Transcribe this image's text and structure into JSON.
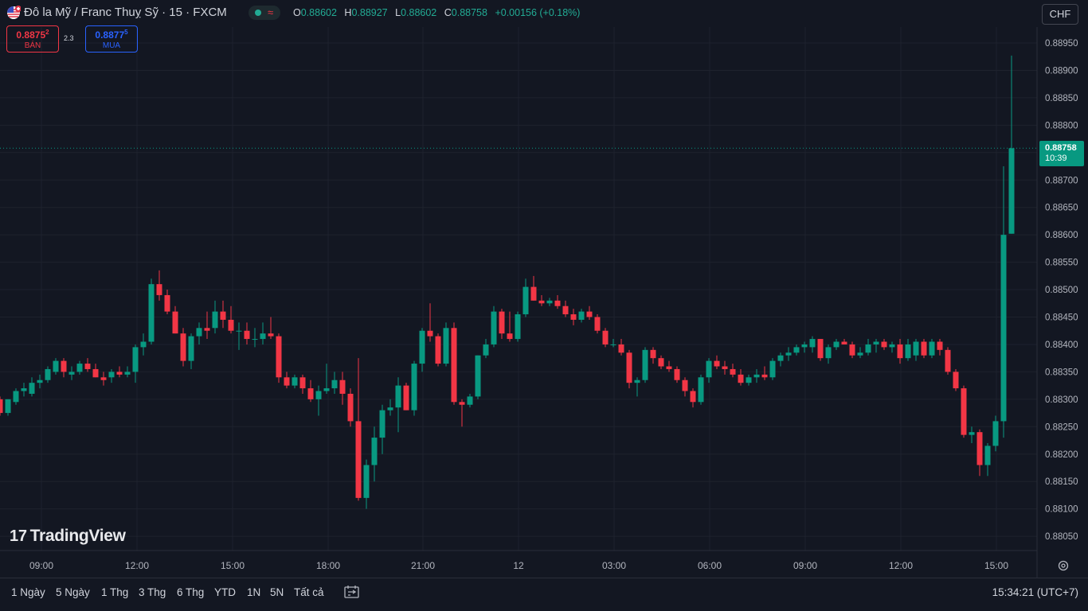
{
  "header": {
    "title": "Đô la Mỹ / Franc Thuỵ Sỹ · 15 · FXCM",
    "ohlc": {
      "o_label": "O",
      "o": "0.88602",
      "h_label": "H",
      "h": "0.88927",
      "l_label": "L",
      "l": "0.88602",
      "c_label": "C",
      "c": "0.88758",
      "change": "+0.00156 (+0.18%)"
    },
    "currency": "CHF"
  },
  "trade": {
    "sell_price_main": "0.8875",
    "sell_price_sup": "2",
    "sell_label": "BÁN",
    "spread": "2.3",
    "buy_price_main": "0.8877",
    "buy_price_sup": "5",
    "buy_label": "MUA"
  },
  "price_tag": {
    "price": "0.88758",
    "countdown": "10:39"
  },
  "logo": {
    "text": "TradingView"
  },
  "range_buttons": [
    "1 Ngày",
    "5 Ngày",
    "1 Thg",
    "3 Thg",
    "6 Thg",
    "YTD",
    "1N",
    "5N",
    "Tất cả"
  ],
  "clock": "15:34:21 (UTC+7)",
  "colors": {
    "up": "#089981",
    "down": "#f23645",
    "background": "#131722",
    "grid": "#1e222d"
  },
  "icons": [
    "us-flag-icon",
    "status-dot-icon",
    "wave-icon",
    "compare-range-icon",
    "gear-icon"
  ],
  "chart_data": {
    "type": "candlestick",
    "interval": "15",
    "ylim": [
      0.8803,
      0.8898
    ],
    "y_ticks": [
      "0.88950",
      "0.88900",
      "0.88850",
      "0.88800",
      "0.88750",
      "0.88700",
      "0.88650",
      "0.88600",
      "0.88550",
      "0.88500",
      "0.88450",
      "0.88400",
      "0.88350",
      "0.88300",
      "0.88250",
      "0.88200",
      "0.88150",
      "0.88100",
      "0.88050"
    ],
    "x_ticks": [
      "09:00",
      "12:00",
      "15:00",
      "18:00",
      "21:00",
      "12",
      "03:00",
      "06:00",
      "09:00",
      "12:00",
      "15:00"
    ],
    "last_price": 0.88758,
    "candles": [
      {
        "o": 0.8826,
        "h": 0.8829,
        "l": 0.8825,
        "c": 0.88275
      },
      {
        "o": 0.8828,
        "h": 0.8832,
        "l": 0.8827,
        "c": 0.883
      },
      {
        "o": 0.883,
        "h": 0.8831,
        "l": 0.8828,
        "c": 0.8829
      },
      {
        "o": 0.88295,
        "h": 0.8832,
        "l": 0.8829,
        "c": 0.88315
      },
      {
        "o": 0.8831,
        "h": 0.8833,
        "l": 0.88295,
        "c": 0.88305
      },
      {
        "o": 0.88305,
        "h": 0.88315,
        "l": 0.8829,
        "c": 0.8829
      },
      {
        "o": 0.8829,
        "h": 0.883,
        "l": 0.8826,
        "c": 0.8827
      },
      {
        "o": 0.8827,
        "h": 0.8831,
        "l": 0.88265,
        "c": 0.883
      },
      {
        "o": 0.883,
        "h": 0.88305,
        "l": 0.8827,
        "c": 0.88275
      },
      {
        "o": 0.88275,
        "h": 0.883,
        "l": 0.8827,
        "c": 0.883
      },
      {
        "o": 0.88295,
        "h": 0.8832,
        "l": 0.8829,
        "c": 0.88315
      },
      {
        "o": 0.88315,
        "h": 0.8833,
        "l": 0.88305,
        "c": 0.8832
      },
      {
        "o": 0.8831,
        "h": 0.8834,
        "l": 0.88305,
        "c": 0.8833
      },
      {
        "o": 0.8833,
        "h": 0.88345,
        "l": 0.8832,
        "c": 0.88335
      },
      {
        "o": 0.88335,
        "h": 0.8836,
        "l": 0.8833,
        "c": 0.88355
      },
      {
        "o": 0.8835,
        "h": 0.88375,
        "l": 0.88345,
        "c": 0.8837
      },
      {
        "o": 0.8837,
        "h": 0.88375,
        "l": 0.8834,
        "c": 0.8835
      },
      {
        "o": 0.88345,
        "h": 0.8836,
        "l": 0.88335,
        "c": 0.8835
      },
      {
        "o": 0.8835,
        "h": 0.8837,
        "l": 0.88345,
        "c": 0.88365
      },
      {
        "o": 0.88365,
        "h": 0.88375,
        "l": 0.8835,
        "c": 0.88355
      },
      {
        "o": 0.88355,
        "h": 0.88365,
        "l": 0.8834,
        "c": 0.8834
      },
      {
        "o": 0.8834,
        "h": 0.8835,
        "l": 0.88325,
        "c": 0.88335
      },
      {
        "o": 0.8834,
        "h": 0.88355,
        "l": 0.8833,
        "c": 0.8835
      },
      {
        "o": 0.8835,
        "h": 0.8836,
        "l": 0.8834,
        "c": 0.88345
      },
      {
        "o": 0.88345,
        "h": 0.8836,
        "l": 0.8834,
        "c": 0.8835
      },
      {
        "o": 0.8835,
        "h": 0.884,
        "l": 0.8833,
        "c": 0.88395
      },
      {
        "o": 0.88395,
        "h": 0.8842,
        "l": 0.8838,
        "c": 0.88405
      },
      {
        "o": 0.88405,
        "h": 0.8852,
        "l": 0.884,
        "c": 0.8851
      },
      {
        "o": 0.8851,
        "h": 0.88535,
        "l": 0.8848,
        "c": 0.8849
      },
      {
        "o": 0.8849,
        "h": 0.885,
        "l": 0.88455,
        "c": 0.8846
      },
      {
        "o": 0.8846,
        "h": 0.8847,
        "l": 0.8842,
        "c": 0.8842
      },
      {
        "o": 0.8842,
        "h": 0.8843,
        "l": 0.8836,
        "c": 0.8837
      },
      {
        "o": 0.8837,
        "h": 0.8842,
        "l": 0.88355,
        "c": 0.88415
      },
      {
        "o": 0.88415,
        "h": 0.8844,
        "l": 0.884,
        "c": 0.8843
      },
      {
        "o": 0.8843,
        "h": 0.8846,
        "l": 0.8841,
        "c": 0.88425
      },
      {
        "o": 0.8843,
        "h": 0.8848,
        "l": 0.8842,
        "c": 0.8846
      },
      {
        "o": 0.8846,
        "h": 0.8848,
        "l": 0.8843,
        "c": 0.88445
      },
      {
        "o": 0.88445,
        "h": 0.8847,
        "l": 0.8842,
        "c": 0.88425
      },
      {
        "o": 0.88425,
        "h": 0.8844,
        "l": 0.8839,
        "c": 0.88425
      },
      {
        "o": 0.88425,
        "h": 0.8844,
        "l": 0.884,
        "c": 0.8841
      },
      {
        "o": 0.8841,
        "h": 0.8843,
        "l": 0.88395,
        "c": 0.8841
      },
      {
        "o": 0.8841,
        "h": 0.8844,
        "l": 0.884,
        "c": 0.8842
      },
      {
        "o": 0.8842,
        "h": 0.8845,
        "l": 0.8841,
        "c": 0.88415
      },
      {
        "o": 0.88415,
        "h": 0.8842,
        "l": 0.8833,
        "c": 0.8834
      },
      {
        "o": 0.8834,
        "h": 0.8835,
        "l": 0.8832,
        "c": 0.88325
      },
      {
        "o": 0.88325,
        "h": 0.88345,
        "l": 0.8832,
        "c": 0.8834
      },
      {
        "o": 0.8834,
        "h": 0.88345,
        "l": 0.8831,
        "c": 0.8832
      },
      {
        "o": 0.8832,
        "h": 0.88335,
        "l": 0.88295,
        "c": 0.883
      },
      {
        "o": 0.883,
        "h": 0.88325,
        "l": 0.8827,
        "c": 0.88315
      },
      {
        "o": 0.88315,
        "h": 0.88365,
        "l": 0.8831,
        "c": 0.8832
      },
      {
        "o": 0.8832,
        "h": 0.8835,
        "l": 0.8831,
        "c": 0.88335
      },
      {
        "o": 0.88335,
        "h": 0.8835,
        "l": 0.8829,
        "c": 0.8831
      },
      {
        "o": 0.8831,
        "h": 0.8832,
        "l": 0.8825,
        "c": 0.8826
      },
      {
        "o": 0.8826,
        "h": 0.88375,
        "l": 0.88115,
        "c": 0.8812
      },
      {
        "o": 0.8812,
        "h": 0.8819,
        "l": 0.881,
        "c": 0.8818
      },
      {
        "o": 0.8818,
        "h": 0.8825,
        "l": 0.8815,
        "c": 0.8823
      },
      {
        "o": 0.8823,
        "h": 0.8829,
        "l": 0.882,
        "c": 0.8828
      },
      {
        "o": 0.8828,
        "h": 0.883,
        "l": 0.8827,
        "c": 0.88285
      },
      {
        "o": 0.88285,
        "h": 0.8834,
        "l": 0.8824,
        "c": 0.88325
      },
      {
        "o": 0.88325,
        "h": 0.8833,
        "l": 0.8828,
        "c": 0.8828
      },
      {
        "o": 0.8828,
        "h": 0.8837,
        "l": 0.8827,
        "c": 0.88365
      },
      {
        "o": 0.88365,
        "h": 0.8843,
        "l": 0.8835,
        "c": 0.88425
      },
      {
        "o": 0.88425,
        "h": 0.88475,
        "l": 0.88405,
        "c": 0.88415
      },
      {
        "o": 0.88415,
        "h": 0.8842,
        "l": 0.8836,
        "c": 0.88365
      },
      {
        "o": 0.88365,
        "h": 0.8844,
        "l": 0.8836,
        "c": 0.8843
      },
      {
        "o": 0.8843,
        "h": 0.8844,
        "l": 0.8829,
        "c": 0.88295
      },
      {
        "o": 0.88295,
        "h": 0.883,
        "l": 0.8825,
        "c": 0.8829
      },
      {
        "o": 0.8829,
        "h": 0.8831,
        "l": 0.88285,
        "c": 0.88305
      },
      {
        "o": 0.88305,
        "h": 0.8838,
        "l": 0.883,
        "c": 0.8838
      },
      {
        "o": 0.8838,
        "h": 0.8841,
        "l": 0.88375,
        "c": 0.884
      },
      {
        "o": 0.884,
        "h": 0.8847,
        "l": 0.88395,
        "c": 0.8846
      },
      {
        "o": 0.8846,
        "h": 0.88465,
        "l": 0.8841,
        "c": 0.8842
      },
      {
        "o": 0.8842,
        "h": 0.8846,
        "l": 0.88405,
        "c": 0.8841
      },
      {
        "o": 0.8841,
        "h": 0.8846,
        "l": 0.88405,
        "c": 0.88455
      },
      {
        "o": 0.88455,
        "h": 0.8852,
        "l": 0.8845,
        "c": 0.88505
      },
      {
        "o": 0.88505,
        "h": 0.88525,
        "l": 0.8848,
        "c": 0.8848
      },
      {
        "o": 0.8848,
        "h": 0.8849,
        "l": 0.8847,
        "c": 0.88475
      },
      {
        "o": 0.88475,
        "h": 0.88485,
        "l": 0.8847,
        "c": 0.8848
      },
      {
        "o": 0.8848,
        "h": 0.8849,
        "l": 0.88465,
        "c": 0.8847
      },
      {
        "o": 0.8847,
        "h": 0.8848,
        "l": 0.8845,
        "c": 0.88455
      },
      {
        "o": 0.88455,
        "h": 0.88465,
        "l": 0.88435,
        "c": 0.88445
      },
      {
        "o": 0.88445,
        "h": 0.88465,
        "l": 0.8844,
        "c": 0.8846
      },
      {
        "o": 0.8846,
        "h": 0.8847,
        "l": 0.88445,
        "c": 0.8845
      },
      {
        "o": 0.8845,
        "h": 0.88455,
        "l": 0.8842,
        "c": 0.88425
      },
      {
        "o": 0.88425,
        "h": 0.8843,
        "l": 0.88395,
        "c": 0.884
      },
      {
        "o": 0.884,
        "h": 0.8841,
        "l": 0.88395,
        "c": 0.884
      },
      {
        "o": 0.884,
        "h": 0.8841,
        "l": 0.8838,
        "c": 0.88385
      },
      {
        "o": 0.88385,
        "h": 0.8839,
        "l": 0.8832,
        "c": 0.8833
      },
      {
        "o": 0.8833,
        "h": 0.8834,
        "l": 0.88305,
        "c": 0.88335
      },
      {
        "o": 0.88335,
        "h": 0.88395,
        "l": 0.8833,
        "c": 0.8839
      },
      {
        "o": 0.8839,
        "h": 0.88395,
        "l": 0.88365,
        "c": 0.88375
      },
      {
        "o": 0.88375,
        "h": 0.8838,
        "l": 0.88355,
        "c": 0.8836
      },
      {
        "o": 0.8836,
        "h": 0.8837,
        "l": 0.8835,
        "c": 0.88355
      },
      {
        "o": 0.88355,
        "h": 0.8836,
        "l": 0.8833,
        "c": 0.88335
      },
      {
        "o": 0.88335,
        "h": 0.8834,
        "l": 0.88305,
        "c": 0.88315
      },
      {
        "o": 0.88315,
        "h": 0.8832,
        "l": 0.88285,
        "c": 0.88295
      },
      {
        "o": 0.88295,
        "h": 0.88345,
        "l": 0.8829,
        "c": 0.8834
      },
      {
        "o": 0.8834,
        "h": 0.88375,
        "l": 0.8833,
        "c": 0.8837
      },
      {
        "o": 0.8837,
        "h": 0.8838,
        "l": 0.88355,
        "c": 0.8836
      },
      {
        "o": 0.8836,
        "h": 0.8837,
        "l": 0.88345,
        "c": 0.88355
      },
      {
        "o": 0.88355,
        "h": 0.88365,
        "l": 0.8834,
        "c": 0.88345
      },
      {
        "o": 0.88345,
        "h": 0.88355,
        "l": 0.88325,
        "c": 0.8833
      },
      {
        "o": 0.8833,
        "h": 0.88345,
        "l": 0.88325,
        "c": 0.8834
      },
      {
        "o": 0.8834,
        "h": 0.88355,
        "l": 0.8833,
        "c": 0.88345
      },
      {
        "o": 0.88345,
        "h": 0.8836,
        "l": 0.88335,
        "c": 0.8834
      },
      {
        "o": 0.8834,
        "h": 0.88375,
        "l": 0.88335,
        "c": 0.8837
      },
      {
        "o": 0.8837,
        "h": 0.88385,
        "l": 0.8836,
        "c": 0.8838
      },
      {
        "o": 0.8838,
        "h": 0.88395,
        "l": 0.8837,
        "c": 0.88385
      },
      {
        "o": 0.88385,
        "h": 0.884,
        "l": 0.8838,
        "c": 0.88395
      },
      {
        "o": 0.88395,
        "h": 0.88405,
        "l": 0.88385,
        "c": 0.884
      },
      {
        "o": 0.88395,
        "h": 0.88415,
        "l": 0.88385,
        "c": 0.8841
      },
      {
        "o": 0.8841,
        "h": 0.8841,
        "l": 0.8837,
        "c": 0.88375
      },
      {
        "o": 0.88375,
        "h": 0.884,
        "l": 0.88365,
        "c": 0.88395
      },
      {
        "o": 0.88395,
        "h": 0.8841,
        "l": 0.8839,
        "c": 0.88405
      },
      {
        "o": 0.88405,
        "h": 0.8841,
        "l": 0.884,
        "c": 0.884
      },
      {
        "o": 0.884,
        "h": 0.88405,
        "l": 0.88375,
        "c": 0.8838
      },
      {
        "o": 0.8838,
        "h": 0.88395,
        "l": 0.88375,
        "c": 0.88385
      },
      {
        "o": 0.88385,
        "h": 0.8841,
        "l": 0.8838,
        "c": 0.884
      },
      {
        "o": 0.884,
        "h": 0.8841,
        "l": 0.88385,
        "c": 0.88405
      },
      {
        "o": 0.88405,
        "h": 0.8841,
        "l": 0.8839,
        "c": 0.88395
      },
      {
        "o": 0.88395,
        "h": 0.88405,
        "l": 0.88385,
        "c": 0.884
      },
      {
        "o": 0.884,
        "h": 0.8841,
        "l": 0.88365,
        "c": 0.88375
      },
      {
        "o": 0.88375,
        "h": 0.8841,
        "l": 0.8837,
        "c": 0.884
      },
      {
        "o": 0.8838,
        "h": 0.8841,
        "l": 0.8837,
        "c": 0.88405
      },
      {
        "o": 0.88405,
        "h": 0.8841,
        "l": 0.88375,
        "c": 0.8838
      },
      {
        "o": 0.8838,
        "h": 0.8841,
        "l": 0.88375,
        "c": 0.88405
      },
      {
        "o": 0.88405,
        "h": 0.8841,
        "l": 0.8838,
        "c": 0.8839
      },
      {
        "o": 0.8839,
        "h": 0.88395,
        "l": 0.88345,
        "c": 0.8835
      },
      {
        "o": 0.8835,
        "h": 0.88355,
        "l": 0.88315,
        "c": 0.8832
      },
      {
        "o": 0.8832,
        "h": 0.88325,
        "l": 0.8823,
        "c": 0.88235
      },
      {
        "o": 0.88235,
        "h": 0.8825,
        "l": 0.8822,
        "c": 0.8824
      },
      {
        "o": 0.8824,
        "h": 0.88245,
        "l": 0.8816,
        "c": 0.8818
      },
      {
        "o": 0.8818,
        "h": 0.8822,
        "l": 0.8816,
        "c": 0.88215
      },
      {
        "o": 0.88215,
        "h": 0.8827,
        "l": 0.88205,
        "c": 0.8826
      },
      {
        "o": 0.8826,
        "h": 0.88725,
        "l": 0.8823,
        "c": 0.886
      },
      {
        "o": 0.88602,
        "h": 0.88927,
        "l": 0.88602,
        "c": 0.88758
      }
    ]
  }
}
